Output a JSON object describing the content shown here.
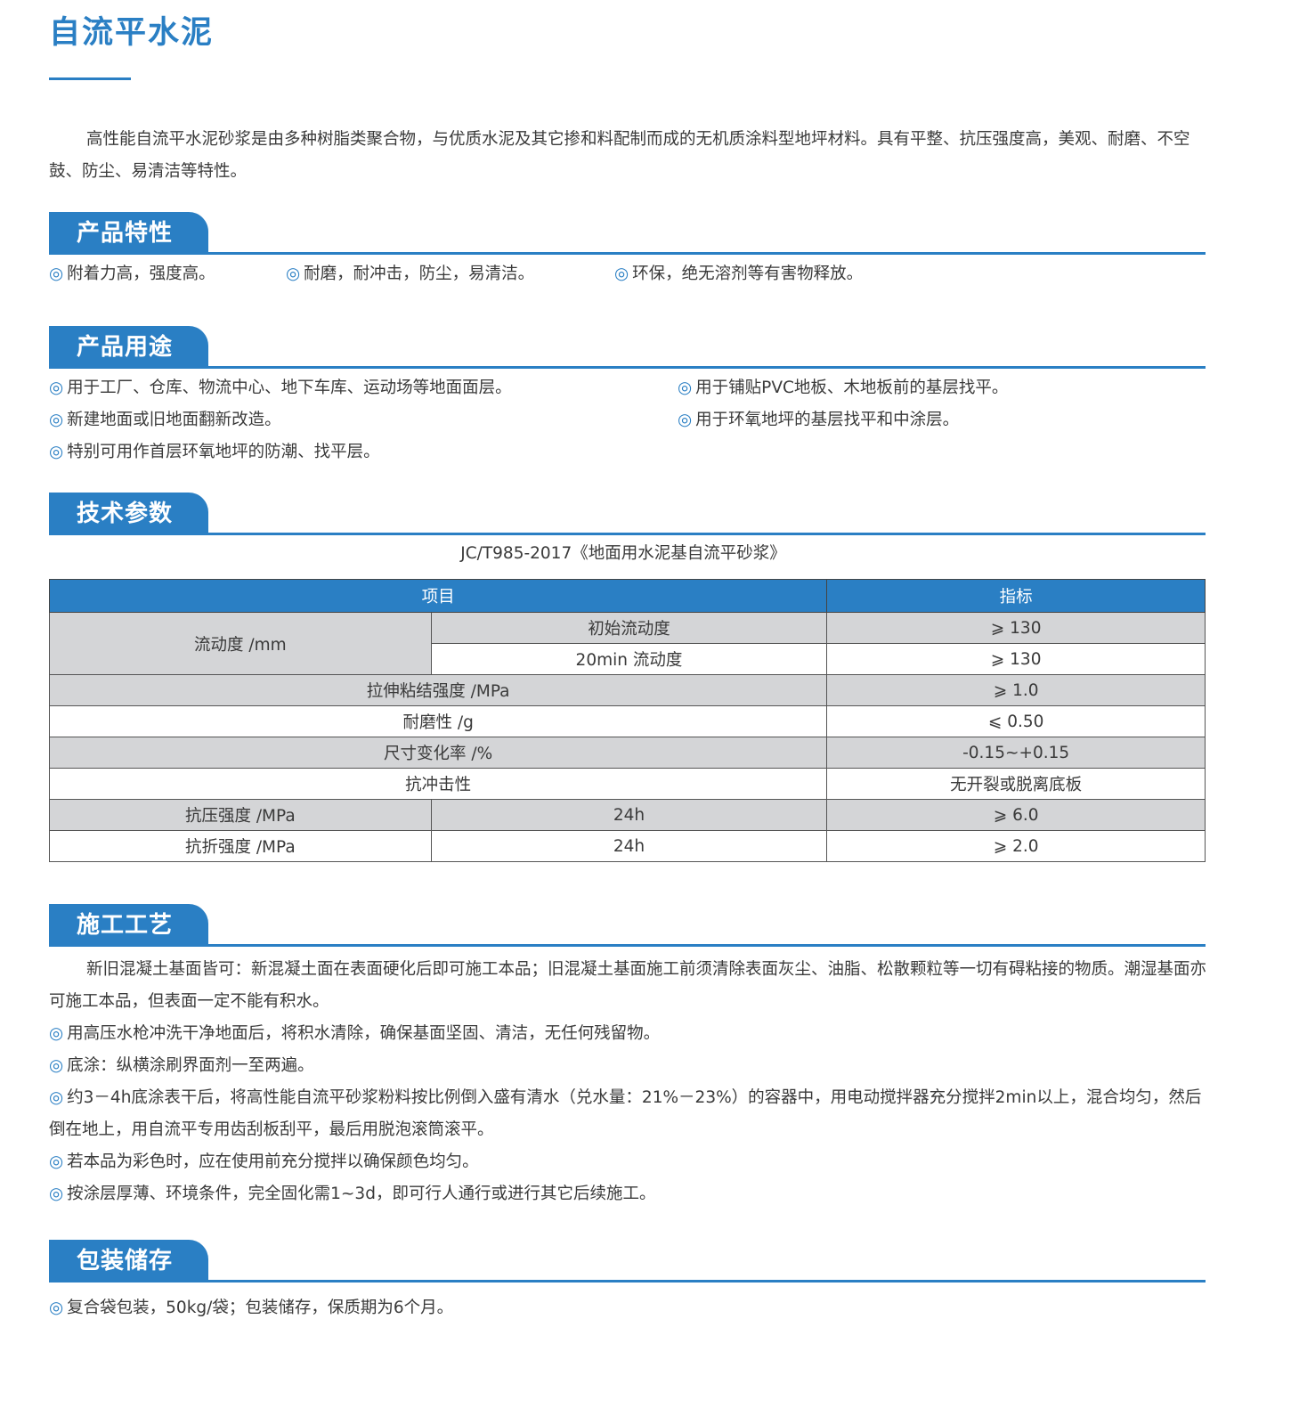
{
  "title": "自流平水泥",
  "intro": "高性能自流平水泥砂浆是由多种树脂类聚合物，与优质水泥及其它掺和料配制而成的无机质涂料型地坪材料。具有平整、抗压强度高，美观、耐磨、不空鼓、防尘、易清洁等特性。",
  "bullet": "◎",
  "sections": {
    "features": {
      "title": "产品特性",
      "items": [
        "附着力高，强度高。",
        "耐磨，耐冲击，防尘，易清洁。",
        "环保，绝无溶剂等有害物释放。"
      ]
    },
    "uses": {
      "title": "产品用途",
      "items": [
        "用于工厂、仓库、物流中心、地下车库、运动场等地面面层。",
        "用于铺贴PVC地板、木地板前的基层找平。",
        "新建地面或旧地面翻新改造。",
        "用于环氧地坪的基层找平和中涂层。",
        "特别可用作首层环氧地坪的防潮、找平层。"
      ]
    },
    "tech": {
      "title": "技术参数",
      "standard": "JC/T985-2017《地面用水泥基自流平砂浆》",
      "table": {
        "headers": [
          "项目",
          "指标"
        ],
        "rows": [
          {
            "item": "流动度 /mm",
            "sub": "初始流动度",
            "value": "⩾ 130"
          },
          {
            "sub": "20min 流动度",
            "value": "⩾ 130"
          },
          {
            "item": "拉伸粘结强度 /MPa",
            "value": "⩾ 1.0"
          },
          {
            "item": "耐磨性 /g",
            "value": "⩽ 0.50"
          },
          {
            "item": "尺寸变化率 /%",
            "value": "-0.15~+0.15"
          },
          {
            "item": "抗冲击性",
            "value": "无开裂或脱离底板"
          },
          {
            "item": "抗压强度 /MPa",
            "sub": "24h",
            "value": "⩾ 6.0"
          },
          {
            "item": "抗折强度 /MPa",
            "sub": "24h",
            "value": "⩾ 2.0"
          }
        ]
      }
    },
    "process": {
      "title": "施工工艺",
      "intro": "新旧混凝土基面皆可：新混凝土面在表面硬化后即可施工本品；旧混凝土基面施工前须清除表面灰尘、油脂、松散颗粒等一切有碍粘接的物质。潮湿基面亦可施工本品，但表面一定不能有积水。",
      "items": [
        "用高压水枪冲洗干净地面后，将积水清除，确保基面坚固、清洁，无任何残留物。",
        "底涂：纵横涂刷界面剂一至两遍。",
        "约3－4h底涂表干后，将高性能自流平砂浆粉料按比例倒入盛有清水（兑水量：21%－23%）的容器中，用电动搅拌器充分搅拌2min以上，混合均匀，然后倒在地上，用自流平专用齿刮板刮平，最后用脱泡滚筒滚平。",
        "若本品为彩色时，应在使用前充分搅拌以确保颜色均匀。",
        "按涂层厚薄、环境条件，完全固化需1~3d，即可行人通行或进行其它后续施工。"
      ]
    },
    "storage": {
      "title": "包装储存",
      "items": [
        "复合袋包装，50kg/袋；包装储存，保质期为6个月。"
      ]
    }
  },
  "colors": {
    "accent": "#2a7fc4",
    "row_gray": "#d4d5d7"
  }
}
